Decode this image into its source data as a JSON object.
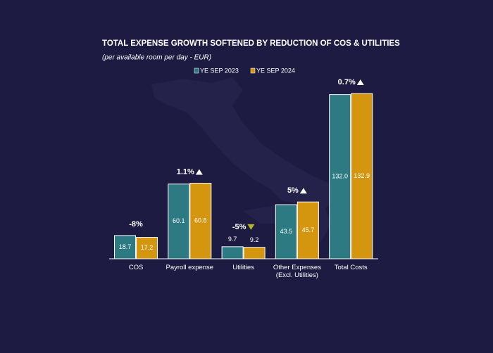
{
  "chart_data": {
    "type": "bar",
    "title": "TOTAL EXPENSE GROWTH SOFTENED BY REDUCTION OF COS & UTILITIES",
    "subtitle": "(per available room per day - EUR)",
    "categories": [
      "COS",
      "Payroll expense",
      "Utilities",
      "Other Expenses\n(Excl. Utilities)",
      "Total Costs"
    ],
    "series": [
      {
        "name": "YE SEP 2023",
        "color": "#2d7a83",
        "values": [
          18.7,
          60.1,
          9.7,
          43.5,
          132.0
        ],
        "value_labels": [
          "18.7",
          "60.1",
          "9.7",
          "43.5",
          "132.0"
        ]
      },
      {
        "name": "YE SEP 2024",
        "color": "#d4950f",
        "values": [
          17.2,
          60.8,
          9.2,
          45.7,
          132.9
        ],
        "value_labels": [
          "17.2",
          "60.8",
          "9.2",
          "45.7",
          "132.9"
        ]
      }
    ],
    "changes": {
      "values": [
        -8,
        1.1,
        -5,
        5,
        0.7
      ],
      "value_labels": [
        "-8%",
        "1.1%",
        "-5%",
        "5%",
        "0.7%"
      ],
      "markers": [
        null,
        "up",
        "down",
        "up",
        "up"
      ],
      "negative_color": "#b5b524",
      "positive_color": "#ffffff"
    }
  }
}
